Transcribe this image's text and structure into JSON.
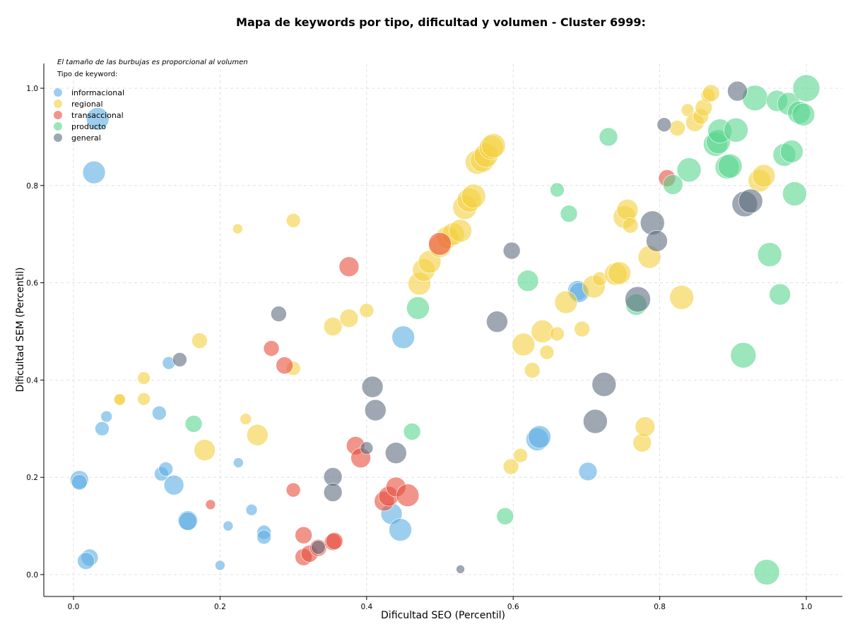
{
  "chart_data": {
    "type": "scatter",
    "title": "Mapa de keywords por tipo, dificultad y volumen - Cluster 6999:",
    "xlabel": "Dificultad SEO (Percentil)",
    "ylabel": "Dificultad SEM (Percentil)",
    "xlim": [
      -0.04,
      1.05
    ],
    "ylim": [
      -0.045,
      1.05
    ],
    "x_ticks": [
      "0.0",
      "0.2",
      "0.4",
      "0.6",
      "0.8",
      "1.0"
    ],
    "y_ticks": [
      "0.0",
      "0.2",
      "0.4",
      "0.6",
      "0.8",
      "1.0"
    ],
    "grid": true,
    "note": "El tamaño de las burbujas es proporcional al volumen",
    "legend_title": "Tipo de keyword:",
    "legend_position": "top-left",
    "series": [
      {
        "name": "informacional",
        "color": "#5DADE2",
        "points": [
          [
            0.033,
            0.937,
            16
          ],
          [
            0.028,
            0.827,
            16
          ],
          [
            0.008,
            0.195,
            13
          ],
          [
            0.008,
            0.19,
            11
          ],
          [
            0.022,
            0.035,
            12
          ],
          [
            0.017,
            0.028,
            12
          ],
          [
            0.039,
            0.3,
            10
          ],
          [
            0.045,
            0.325,
            8
          ],
          [
            0.117,
            0.332,
            10
          ],
          [
            0.13,
            0.435,
            9
          ],
          [
            0.12,
            0.207,
            10
          ],
          [
            0.126,
            0.217,
            10
          ],
          [
            0.137,
            0.184,
            14
          ],
          [
            0.156,
            0.111,
            14
          ],
          [
            0.156,
            0.11,
            13
          ],
          [
            0.2,
            0.019,
            7
          ],
          [
            0.211,
            0.1,
            7
          ],
          [
            0.225,
            0.23,
            7
          ],
          [
            0.243,
            0.133,
            8
          ],
          [
            0.26,
            0.087,
            10
          ],
          [
            0.26,
            0.077,
            10
          ],
          [
            0.45,
            0.488,
            16
          ],
          [
            0.434,
            0.125,
            15
          ],
          [
            0.446,
            0.092,
            16
          ],
          [
            0.633,
            0.278,
            16
          ],
          [
            0.636,
            0.283,
            16
          ],
          [
            0.688,
            0.584,
            14
          ],
          [
            0.69,
            0.58,
            14
          ],
          [
            0.702,
            0.212,
            13
          ]
        ]
      },
      {
        "name": "regional",
        "color": "#F4D03F",
        "points": [
          [
            0.063,
            0.36,
            8
          ],
          [
            0.063,
            0.36,
            8
          ],
          [
            0.096,
            0.404,
            9
          ],
          [
            0.096,
            0.361,
            9
          ],
          [
            0.172,
            0.481,
            11
          ],
          [
            0.179,
            0.256,
            15
          ],
          [
            0.224,
            0.711,
            7
          ],
          [
            0.235,
            0.32,
            8
          ],
          [
            0.251,
            0.287,
            15
          ],
          [
            0.3,
            0.728,
            10
          ],
          [
            0.3,
            0.424,
            10
          ],
          [
            0.354,
            0.51,
            13
          ],
          [
            0.376,
            0.527,
            13
          ],
          [
            0.4,
            0.543,
            10
          ],
          [
            0.472,
            0.598,
            16
          ],
          [
            0.478,
            0.626,
            16
          ],
          [
            0.486,
            0.643,
            16
          ],
          [
            0.5,
            0.675,
            16
          ],
          [
            0.51,
            0.693,
            16
          ],
          [
            0.518,
            0.7,
            16
          ],
          [
            0.528,
            0.707,
            16
          ],
          [
            0.534,
            0.755,
            17
          ],
          [
            0.54,
            0.77,
            17
          ],
          [
            0.546,
            0.778,
            17
          ],
          [
            0.551,
            0.848,
            17
          ],
          [
            0.558,
            0.852,
            17
          ],
          [
            0.563,
            0.862,
            17
          ],
          [
            0.57,
            0.878,
            17
          ],
          [
            0.573,
            0.882,
            17
          ],
          [
            0.597,
            0.222,
            11
          ],
          [
            0.61,
            0.245,
            10
          ],
          [
            0.614,
            0.473,
            16
          ],
          [
            0.626,
            0.42,
            11
          ],
          [
            0.64,
            0.5,
            16
          ],
          [
            0.646,
            0.457,
            10
          ],
          [
            0.66,
            0.495,
            10
          ],
          [
            0.672,
            0.56,
            16
          ],
          [
            0.694,
            0.505,
            11
          ],
          [
            0.71,
            0.592,
            16
          ],
          [
            0.718,
            0.608,
            10
          ],
          [
            0.74,
            0.618,
            16
          ],
          [
            0.745,
            0.62,
            16
          ],
          [
            0.752,
            0.735,
            16
          ],
          [
            0.756,
            0.75,
            15
          ],
          [
            0.76,
            0.718,
            11
          ],
          [
            0.776,
            0.271,
            13
          ],
          [
            0.78,
            0.304,
            14
          ],
          [
            0.786,
            0.653,
            16
          ],
          [
            0.83,
            0.57,
            17
          ],
          [
            0.824,
            0.918,
            11
          ],
          [
            0.838,
            0.955,
            9
          ],
          [
            0.848,
            0.93,
            13
          ],
          [
            0.856,
            0.942,
            11
          ],
          [
            0.86,
            0.96,
            12
          ],
          [
            0.866,
            0.985,
            10
          ],
          [
            0.87,
            0.99,
            12
          ],
          [
            0.936,
            0.81,
            16
          ],
          [
            0.942,
            0.82,
            16
          ]
        ]
      },
      {
        "name": "transaccional",
        "color": "#E74C3C",
        "points": [
          [
            0.187,
            0.144,
            7
          ],
          [
            0.27,
            0.465,
            11
          ],
          [
            0.288,
            0.43,
            12
          ],
          [
            0.3,
            0.174,
            10
          ],
          [
            0.314,
            0.036,
            12
          ],
          [
            0.314,
            0.081,
            12
          ],
          [
            0.322,
            0.043,
            12
          ],
          [
            0.334,
            0.055,
            12
          ],
          [
            0.354,
            0.067,
            12
          ],
          [
            0.356,
            0.069,
            12
          ],
          [
            0.376,
            0.633,
            14
          ],
          [
            0.385,
            0.265,
            13
          ],
          [
            0.392,
            0.24,
            14
          ],
          [
            0.424,
            0.151,
            14
          ],
          [
            0.43,
            0.161,
            14
          ],
          [
            0.44,
            0.18,
            14
          ],
          [
            0.456,
            0.163,
            16
          ],
          [
            0.5,
            0.68,
            16
          ],
          [
            0.81,
            0.815,
            12
          ]
        ]
      },
      {
        "name": "producto",
        "color": "#58D68D",
        "points": [
          [
            0.164,
            0.31,
            12
          ],
          [
            0.47,
            0.548,
            16
          ],
          [
            0.462,
            0.294,
            12
          ],
          [
            0.589,
            0.12,
            12
          ],
          [
            0.62,
            0.604,
            15
          ],
          [
            0.66,
            0.791,
            10
          ],
          [
            0.676,
            0.742,
            12
          ],
          [
            0.73,
            0.9,
            13
          ],
          [
            0.768,
            0.555,
            15
          ],
          [
            0.818,
            0.802,
            14
          ],
          [
            0.84,
            0.832,
            17
          ],
          [
            0.876,
            0.885,
            17
          ],
          [
            0.88,
            0.89,
            17
          ],
          [
            0.882,
            0.912,
            17
          ],
          [
            0.892,
            0.838,
            17
          ],
          [
            0.896,
            0.84,
            17
          ],
          [
            0.904,
            0.914,
            17
          ],
          [
            0.914,
            0.451,
            18
          ],
          [
            0.93,
            0.98,
            18
          ],
          [
            0.946,
            0.005,
            18
          ],
          [
            0.95,
            0.658,
            17
          ],
          [
            0.96,
            0.974,
            15
          ],
          [
            0.964,
            0.576,
            15
          ],
          [
            0.97,
            0.863,
            16
          ],
          [
            0.976,
            0.968,
            16
          ],
          [
            0.98,
            0.87,
            16
          ],
          [
            0.984,
            0.783,
            17
          ],
          [
            0.99,
            0.95,
            16
          ],
          [
            0.996,
            0.946,
            16
          ],
          [
            1.0,
            1.0,
            19
          ]
        ]
      },
      {
        "name": "general",
        "color": "#5D6D7E",
        "points": [
          [
            0.145,
            0.442,
            10
          ],
          [
            0.28,
            0.536,
            11
          ],
          [
            0.334,
            0.056,
            10
          ],
          [
            0.354,
            0.201,
            13
          ],
          [
            0.354,
            0.169,
            13
          ],
          [
            0.4,
            0.26,
            9
          ],
          [
            0.408,
            0.386,
            15
          ],
          [
            0.412,
            0.338,
            15
          ],
          [
            0.44,
            0.25,
            15
          ],
          [
            0.528,
            0.011,
            6
          ],
          [
            0.578,
            0.52,
            15
          ],
          [
            0.598,
            0.666,
            12
          ],
          [
            0.712,
            0.315,
            17
          ],
          [
            0.724,
            0.391,
            17
          ],
          [
            0.77,
            0.566,
            18
          ],
          [
            0.79,
            0.723,
            17
          ],
          [
            0.796,
            0.686,
            15
          ],
          [
            0.806,
            0.925,
            10
          ],
          [
            0.906,
            0.994,
            14
          ],
          [
            0.916,
            0.762,
            18
          ],
          [
            0.924,
            0.768,
            17
          ]
        ]
      }
    ]
  }
}
